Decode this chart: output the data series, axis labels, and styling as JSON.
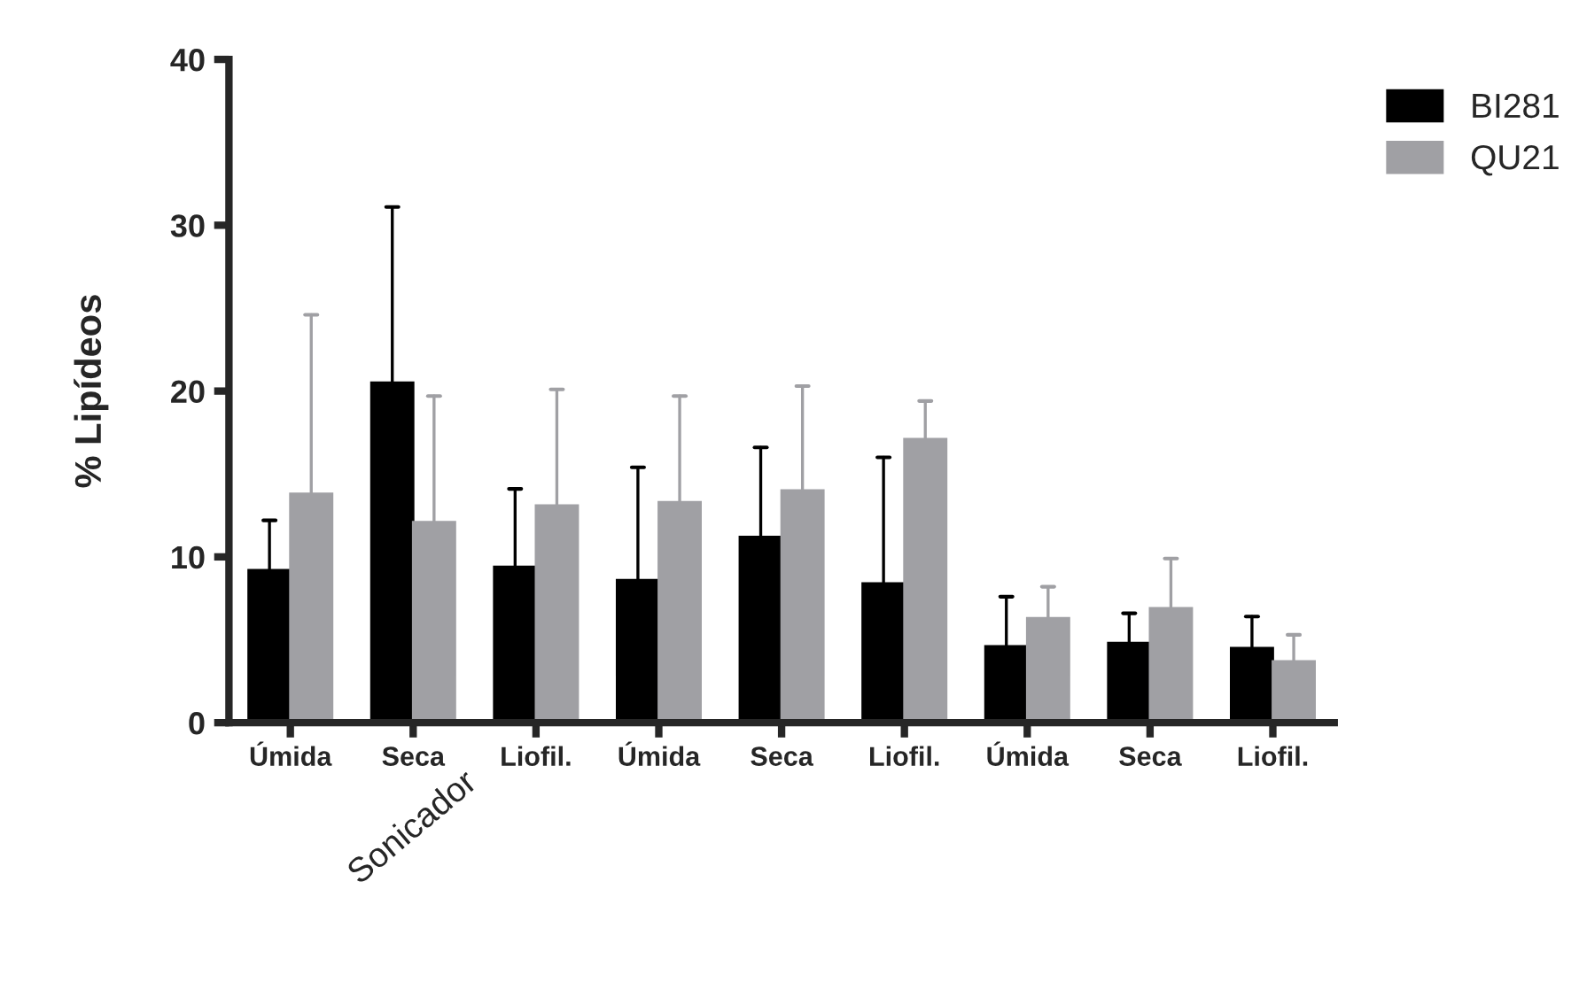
{
  "chart_data": {
    "type": "bar",
    "ylabel": "% Lipídeos",
    "categories": [
      "Úmida",
      "Seca",
      "Liofil.",
      "Úmida",
      "Seca",
      "Liofil.",
      "Úmida",
      "Seca",
      "Liofil."
    ],
    "series": [
      {
        "name": "BI281",
        "color": "#000000",
        "values": [
          9.2,
          20.5,
          9.4,
          8.6,
          11.2,
          8.4,
          4.6,
          4.8,
          4.5
        ],
        "errors": [
          [
            9.2,
            12.2
          ],
          [
            20.5,
            31.1
          ],
          [
            9.4,
            14.1
          ],
          [
            8.6,
            15.4
          ],
          [
            11.2,
            16.6
          ],
          [
            8.4,
            16.0
          ],
          [
            4.6,
            7.6
          ],
          [
            4.8,
            6.6
          ],
          [
            4.5,
            6.4
          ]
        ]
      },
      {
        "name": "QU21",
        "color": "#a0a0a4",
        "values": [
          13.8,
          12.1,
          13.1,
          13.3,
          14.0,
          17.1,
          6.3,
          6.9,
          3.7
        ],
        "errors": [
          [
            13.8,
            24.6
          ],
          [
            12.1,
            19.7
          ],
          [
            13.1,
            20.1
          ],
          [
            13.3,
            19.7
          ],
          [
            14.0,
            20.3
          ],
          [
            17.1,
            19.4
          ],
          [
            6.3,
            8.2
          ],
          [
            6.9,
            9.9
          ],
          [
            3.7,
            5.3
          ]
        ]
      }
    ],
    "annotations": [
      "Sonicador"
    ],
    "ylim": [
      0,
      40
    ],
    "yticks": [
      0,
      10,
      20,
      30,
      40
    ],
    "grid": false,
    "legend": "top right"
  }
}
